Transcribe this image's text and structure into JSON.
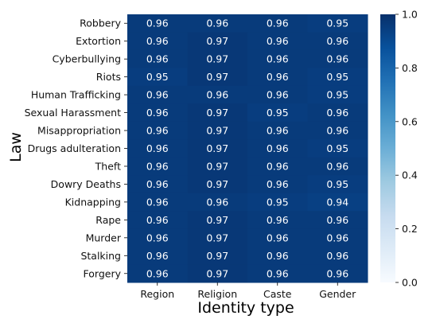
{
  "chart_data": {
    "type": "heatmap",
    "title": "",
    "xlabel": "Identity type",
    "ylabel": "Law",
    "x_categories": [
      "Region",
      "Religion",
      "Caste",
      "Gender"
    ],
    "y_categories": [
      "Robbery",
      "Extortion",
      "Cyberbullying",
      "Riots",
      "Human Trafficking",
      "Sexual Harassment",
      "Misappropriation",
      "Drugs adulteration",
      "Theft",
      "Dowry Deaths",
      "Kidnapping",
      "Rape",
      "Murder",
      "Stalking",
      "Forgery"
    ],
    "values": [
      [
        0.96,
        0.96,
        0.96,
        0.95
      ],
      [
        0.96,
        0.97,
        0.96,
        0.96
      ],
      [
        0.96,
        0.97,
        0.96,
        0.96
      ],
      [
        0.95,
        0.97,
        0.96,
        0.95
      ],
      [
        0.96,
        0.96,
        0.96,
        0.95
      ],
      [
        0.96,
        0.97,
        0.95,
        0.96
      ],
      [
        0.96,
        0.97,
        0.96,
        0.96
      ],
      [
        0.96,
        0.97,
        0.96,
        0.95
      ],
      [
        0.96,
        0.97,
        0.96,
        0.96
      ],
      [
        0.96,
        0.97,
        0.96,
        0.95
      ],
      [
        0.96,
        0.96,
        0.95,
        0.94
      ],
      [
        0.96,
        0.97,
        0.96,
        0.96
      ],
      [
        0.96,
        0.97,
        0.96,
        0.96
      ],
      [
        0.96,
        0.97,
        0.96,
        0.96
      ],
      [
        0.96,
        0.97,
        0.96,
        0.96
      ]
    ],
    "colorbar": {
      "range": [
        0.0,
        1.0
      ],
      "ticks": [
        "0.0",
        "0.2",
        "0.4",
        "0.6",
        "0.8",
        "1.0"
      ],
      "colormap": "Blues",
      "color_low": "#f7fbff",
      "color_high": "#08306b"
    },
    "grid": false
  }
}
